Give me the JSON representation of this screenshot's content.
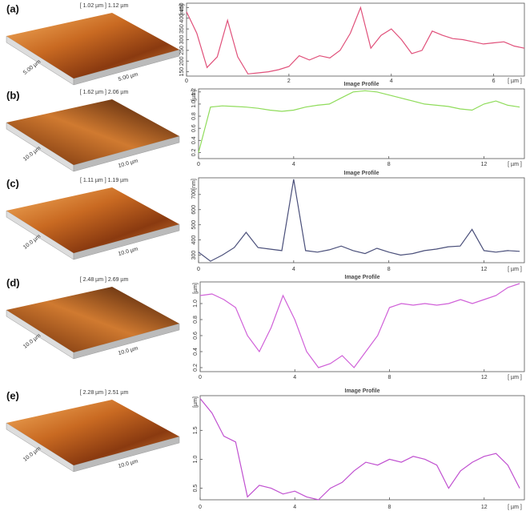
{
  "panels": [
    {
      "label": "(a)",
      "image_title": "[ 1.02 µm ] 1.12 µm",
      "image_axes": [
        "5.00 µm",
        "5.00 µm"
      ]
    },
    {
      "label": "(b)",
      "image_title": "[ 1.62 µm ] 2.06 µm",
      "image_axes": [
        "10.0 µm",
        "10.0 µm"
      ]
    },
    {
      "label": "(c)",
      "image_title": "[ 1.11 µm ] 1.19 µm",
      "image_axes": [
        "10.0 µm",
        "10.0 µm"
      ]
    },
    {
      "label": "(d)",
      "image_title": "[ 2.48 µm ] 2.69 µm",
      "image_axes": [
        "10.0 µm",
        "10.0 µm"
      ]
    },
    {
      "label": "(e)",
      "image_title": "[ 2.28 µm ] 2.51 µm",
      "image_axes": [
        "10.0 µm",
        "10.0 µm"
      ]
    }
  ],
  "chart_data": [
    {
      "type": "line",
      "color": "#e0507a",
      "x_unit": "[ µm ]",
      "y_unit": "[nm]",
      "x": [
        0,
        0.2,
        0.4,
        0.6,
        0.8,
        1,
        1.2,
        1.4,
        1.6,
        1.8,
        2,
        2.2,
        2.4,
        2.6,
        2.8,
        3,
        3.2,
        3.4,
        3.6,
        3.8,
        4,
        4.2,
        4.4,
        4.6,
        4.8,
        5,
        5.2,
        5.4,
        5.6,
        5.8,
        6,
        6.2,
        6.4,
        6.6
      ],
      "values": [
        430,
        330,
        170,
        220,
        390,
        220,
        140,
        145,
        150,
        160,
        175,
        225,
        205,
        225,
        215,
        250,
        330,
        450,
        260,
        320,
        350,
        300,
        235,
        250,
        340,
        320,
        305,
        300,
        290,
        280,
        285,
        290,
        270,
        260
      ],
      "xlim": [
        0,
        6.6
      ],
      "ylim": [
        130,
        470
      ],
      "xticks": [
        0,
        2,
        4,
        6
      ],
      "yticks": [
        150,
        200,
        250,
        300,
        350,
        400,
        450
      ]
    },
    {
      "type": "line",
      "title": "Image Profile",
      "color": "#8fdc5a",
      "x_unit": "[ µm ]",
      "y_unit": "[µm]",
      "x": [
        0,
        0.5,
        1,
        1.5,
        2,
        2.5,
        3,
        3.5,
        4,
        4.5,
        5,
        5.5,
        6,
        6.5,
        7,
        7.5,
        8,
        8.5,
        9,
        9.5,
        10,
        10.5,
        11,
        11.5,
        12,
        12.5,
        13,
        13.5
      ],
      "values": [
        0.2,
        0.95,
        0.97,
        0.96,
        0.95,
        0.93,
        0.9,
        0.88,
        0.9,
        0.95,
        0.98,
        1.0,
        1.1,
        1.2,
        1.22,
        1.2,
        1.15,
        1.1,
        1.05,
        1.0,
        0.98,
        0.96,
        0.92,
        0.9,
        1.0,
        1.05,
        0.98,
        0.95
      ],
      "xlim": [
        0,
        13.7
      ],
      "ylim": [
        0.1,
        1.25
      ],
      "xticks": [
        0,
        4,
        8,
        12
      ],
      "yticks": [
        0.2,
        0.4,
        0.6,
        0.8,
        {
          "value": 1,
          "label": "1.0"
        },
        1.2
      ]
    },
    {
      "type": "line",
      "title": "Image Profile",
      "color": "#4a4f7a",
      "x_unit": "[ µm ]",
      "y_unit": "[nm]",
      "x": [
        0,
        0.5,
        1,
        1.5,
        2,
        2.5,
        3,
        3.5,
        4,
        4.5,
        5,
        5.5,
        6,
        6.5,
        7,
        7.5,
        8,
        8.5,
        9,
        9.5,
        10,
        10.5,
        11,
        11.5,
        12,
        12.5,
        13,
        13.5
      ],
      "values": [
        320,
        260,
        300,
        350,
        450,
        350,
        340,
        330,
        800,
        330,
        320,
        335,
        360,
        330,
        310,
        345,
        320,
        300,
        310,
        330,
        340,
        355,
        360,
        470,
        330,
        320,
        330,
        325
      ],
      "xlim": [
        0,
        13.7
      ],
      "ylim": [
        250,
        810
      ],
      "xticks": [
        0,
        4,
        8,
        12
      ],
      "yticks": [
        300,
        400,
        500,
        600,
        700
      ]
    },
    {
      "type": "line",
      "title": "Image Profile",
      "color": "#d060d8",
      "x_unit": "[ µm ]",
      "y_unit": "[µm]",
      "x": [
        0,
        0.5,
        1,
        1.5,
        2,
        2.5,
        3,
        3.5,
        4,
        4.5,
        5,
        5.5,
        6,
        6.5,
        7,
        7.5,
        8,
        8.5,
        9,
        9.5,
        10,
        10.5,
        11,
        11.5,
        12,
        12.5,
        13,
        13.5
      ],
      "values": [
        1.1,
        1.12,
        1.05,
        0.95,
        0.6,
        0.4,
        0.7,
        1.1,
        0.8,
        0.4,
        0.2,
        0.25,
        0.35,
        0.2,
        0.4,
        0.6,
        0.95,
        1.0,
        0.98,
        1.0,
        0.98,
        1.0,
        1.05,
        1.0,
        1.05,
        1.1,
        1.2,
        1.25
      ],
      "xlim": [
        0,
        13.7
      ],
      "ylim": [
        0.15,
        1.27
      ],
      "xticks": [
        0,
        4,
        8,
        12
      ],
      "yticks": [
        0.2,
        0.4,
        0.6,
        0.8,
        {
          "value": 1,
          "label": "1.0"
        }
      ]
    },
    {
      "type": "line",
      "title": "Image Profile",
      "color": "#c050d0",
      "x_unit": "[ µm ]",
      "y_unit": "[µm]",
      "x": [
        0,
        0.5,
        1,
        1.5,
        2,
        2.5,
        3,
        3.5,
        4,
        4.5,
        5,
        5.5,
        6,
        6.5,
        7,
        7.5,
        8,
        8.5,
        9,
        9.5,
        10,
        10.5,
        11,
        11.5,
        12,
        12.5,
        13,
        13.5
      ],
      "values": [
        2.05,
        1.8,
        1.4,
        1.3,
        0.35,
        0.55,
        0.5,
        0.4,
        0.45,
        0.35,
        0.3,
        0.5,
        0.6,
        0.8,
        0.95,
        0.9,
        1.0,
        0.95,
        1.05,
        1.0,
        0.9,
        0.5,
        0.8,
        0.95,
        1.05,
        1.1,
        0.9,
        0.5
      ],
      "xlim": [
        0,
        13.7
      ],
      "ylim": [
        0.3,
        2.1
      ],
      "xticks": [
        0,
        4,
        8,
        12
      ],
      "yticks": [
        0.5,
        {
          "value": 1,
          "label": "1.0"
        },
        1.5
      ]
    }
  ]
}
